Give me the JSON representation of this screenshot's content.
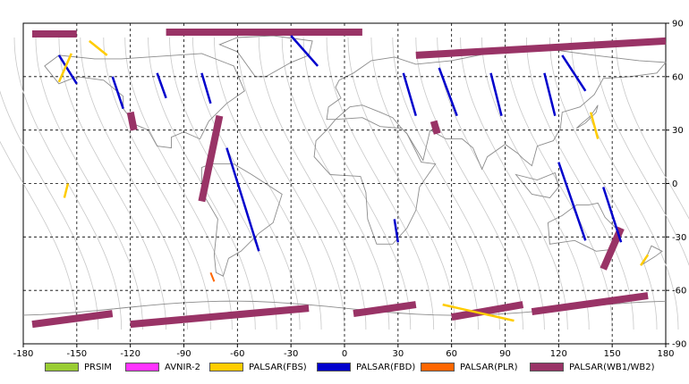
{
  "map": {
    "lon_range": [
      -180,
      180
    ],
    "lat_range": [
      -90,
      90
    ],
    "x_ticks": [
      -180,
      -150,
      -120,
      -90,
      -60,
      -30,
      0,
      30,
      60,
      90,
      120,
      150,
      180
    ],
    "y_ticks": [
      90,
      60,
      30,
      0,
      -30,
      -60,
      -90
    ],
    "x_tick_labels": [
      "-180",
      "-150",
      "-120",
      "-90",
      "-60",
      "-30",
      "0",
      "30",
      "60",
      "90",
      "120",
      "150",
      "180"
    ],
    "y_tick_labels": [
      "90",
      "60",
      "30",
      "0",
      "-30",
      "-60",
      "-90"
    ],
    "grid": "dashed",
    "coastline_color": "#8c8c8c",
    "orbit_track_color": "#c8c8c8"
  },
  "legend": {
    "placement": "bottom",
    "items": [
      {
        "label": "PRSIM",
        "color": "#99cc33"
      },
      {
        "label": "AVNIR-2",
        "color": "#ff33ff"
      },
      {
        "label": "PALSAR(FBS)",
        "color": "#ffcc00"
      },
      {
        "label": "PALSAR(FBD)",
        "color": "#0000cc"
      },
      {
        "label": "PALSAR(PLR)",
        "color": "#ff6600"
      },
      {
        "label": "PALSAR(WB1/WB2)",
        "color": "#993366"
      }
    ]
  },
  "chart_data": {
    "type": "map",
    "swaths": [
      {
        "sensor": "PALSAR(WB1/WB2)",
        "path": [
          [
            -120,
            40
          ],
          [
            -118,
            30
          ]
        ]
      },
      {
        "sensor": "PALSAR(WB1/WB2)",
        "path": [
          [
            -70,
            38
          ],
          [
            -80,
            -10
          ]
        ]
      },
      {
        "sensor": "PALSAR(WB1/WB2)",
        "path": [
          [
            50,
            35
          ],
          [
            52,
            28
          ]
        ]
      },
      {
        "sensor": "PALSAR(WB1/WB2)",
        "path": [
          [
            155,
            -25
          ],
          [
            145,
            -48
          ]
        ]
      },
      {
        "sensor": "PALSAR(WB1/WB2)",
        "path": [
          [
            -100,
            85
          ],
          [
            10,
            85
          ]
        ]
      },
      {
        "sensor": "PALSAR(WB1/WB2)",
        "path": [
          [
            -175,
            84
          ],
          [
            -150,
            84
          ]
        ]
      },
      {
        "sensor": "PALSAR(WB1/WB2)",
        "path": [
          [
            40,
            72
          ],
          [
            180,
            80
          ]
        ]
      },
      {
        "sensor": "PALSAR(WB1/WB2)",
        "path": [
          [
            -175,
            -79
          ],
          [
            -130,
            -73
          ]
        ]
      },
      {
        "sensor": "PALSAR(WB1/WB2)",
        "path": [
          [
            -120,
            -79
          ],
          [
            -20,
            -70
          ]
        ]
      },
      {
        "sensor": "PALSAR(WB1/WB2)",
        "path": [
          [
            5,
            -73
          ],
          [
            40,
            -68
          ]
        ]
      },
      {
        "sensor": "PALSAR(WB1/WB2)",
        "path": [
          [
            60,
            -75
          ],
          [
            100,
            -68
          ]
        ]
      },
      {
        "sensor": "PALSAR(WB1/WB2)",
        "path": [
          [
            105,
            -72
          ],
          [
            170,
            -63
          ]
        ]
      },
      {
        "sensor": "PALSAR(FBD)",
        "path": [
          [
            -30,
            83
          ],
          [
            -15,
            66
          ]
        ]
      },
      {
        "sensor": "PALSAR(FBD)",
        "path": [
          [
            -160,
            72
          ],
          [
            -150,
            56
          ]
        ]
      },
      {
        "sensor": "PALSAR(FBD)",
        "path": [
          [
            -130,
            60
          ],
          [
            -124,
            42
          ]
        ]
      },
      {
        "sensor": "PALSAR(FBD)",
        "path": [
          [
            -105,
            62
          ],
          [
            -100,
            48
          ]
        ]
      },
      {
        "sensor": "PALSAR(FBD)",
        "path": [
          [
            -80,
            62
          ],
          [
            -75,
            45
          ]
        ]
      },
      {
        "sensor": "PALSAR(FBD)",
        "path": [
          [
            -66,
            20
          ],
          [
            -48,
            -38
          ]
        ]
      },
      {
        "sensor": "PALSAR(FBD)",
        "path": [
          [
            33,
            62
          ],
          [
            40,
            38
          ]
        ]
      },
      {
        "sensor": "PALSAR(FBD)",
        "path": [
          [
            53,
            65
          ],
          [
            63,
            38
          ]
        ]
      },
      {
        "sensor": "PALSAR(FBD)",
        "path": [
          [
            82,
            62
          ],
          [
            88,
            38
          ]
        ]
      },
      {
        "sensor": "PALSAR(FBD)",
        "path": [
          [
            112,
            62
          ],
          [
            118,
            38
          ]
        ]
      },
      {
        "sensor": "PALSAR(FBD)",
        "path": [
          [
            122,
            72
          ],
          [
            135,
            52
          ]
        ]
      },
      {
        "sensor": "PALSAR(FBD)",
        "path": [
          [
            120,
            12
          ],
          [
            135,
            -32
          ]
        ]
      },
      {
        "sensor": "PALSAR(FBD)",
        "path": [
          [
            145,
            -2
          ],
          [
            155,
            -33
          ]
        ]
      },
      {
        "sensor": "PALSAR(FBD)",
        "path": [
          [
            28,
            -20
          ],
          [
            30,
            -33
          ]
        ]
      },
      {
        "sensor": "PALSAR(FBS)",
        "path": [
          [
            -143,
            80
          ],
          [
            -133,
            72
          ]
        ]
      },
      {
        "sensor": "PALSAR(FBS)",
        "path": [
          [
            -153,
            73
          ],
          [
            -160,
            57
          ]
        ]
      },
      {
        "sensor": "PALSAR(FBS)",
        "path": [
          [
            138,
            40
          ],
          [
            142,
            25
          ]
        ]
      },
      {
        "sensor": "PALSAR(FBS)",
        "path": [
          [
            170,
            -40
          ],
          [
            166,
            -46
          ]
        ]
      },
      {
        "sensor": "PALSAR(FBS)",
        "path": [
          [
            55,
            -68
          ],
          [
            95,
            -77
          ]
        ]
      },
      {
        "sensor": "PALSAR(FBS)",
        "path": [
          [
            -155,
            0
          ],
          [
            -157,
            -8
          ]
        ]
      },
      {
        "sensor": "PALSAR(PLR)",
        "path": [
          [
            -75,
            -50
          ],
          [
            -73,
            -55
          ]
        ]
      }
    ]
  }
}
